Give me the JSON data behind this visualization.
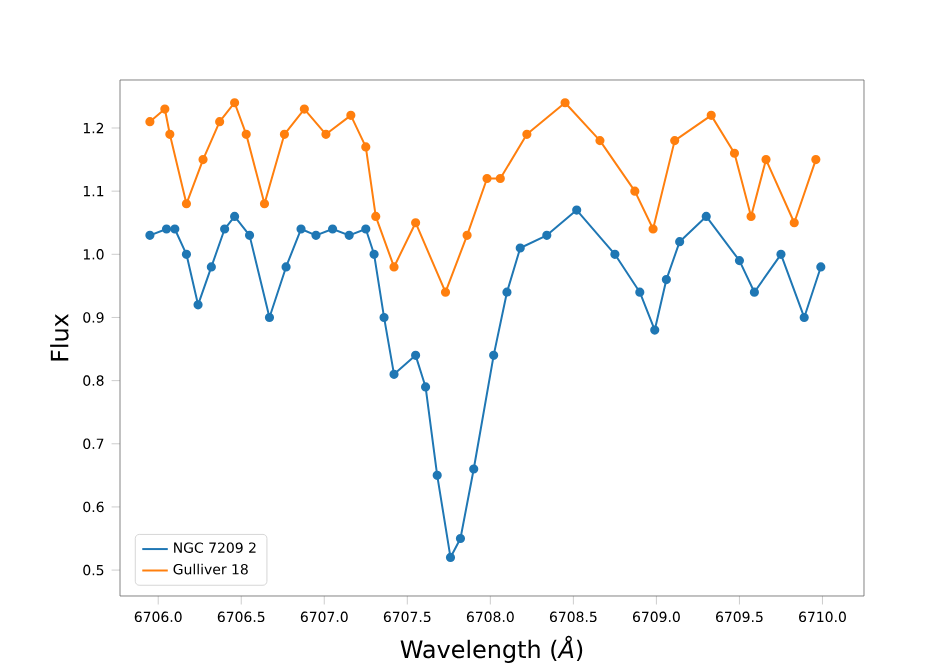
{
  "chart_data": {
    "type": "line",
    "xlabel": "Wavelength (*Å*)",
    "ylabel": "Flux",
    "marker": "circle",
    "line_style": "solid",
    "legend": "bottom left",
    "xlim": [
      6705.77,
      6710.25
    ],
    "ylim": [
      0.459,
      1.276
    ],
    "xticks": [
      {
        "value": 6706,
        "label": "6706.0"
      },
      {
        "value": 6706.5,
        "label": "6706.5"
      },
      {
        "value": 6707,
        "label": "6707.0"
      },
      {
        "value": 6707.5,
        "label": "6707.5"
      },
      {
        "value": 6708,
        "label": "6708.0"
      },
      {
        "value": 6708.5,
        "label": "6708.5"
      },
      {
        "value": 6709,
        "label": "6709.0"
      },
      {
        "value": 6709.5,
        "label": "6709.5"
      },
      {
        "value": 6710,
        "label": "6710.0"
      }
    ],
    "yticks": [
      0.5,
      0.6,
      0.7,
      0.8,
      0.9,
      {
        "value": 1,
        "label": "1.0"
      },
      1.1,
      1.2
    ],
    "series": [
      {
        "name": "NGC 7209 2",
        "color": "#1f77b4",
        "x": [
          6705.95,
          6706.05,
          6706.1,
          6706.17,
          6706.24,
          6706.32,
          6706.4,
          6706.46,
          6706.55,
          6706.67,
          6706.77,
          6706.86,
          6706.95,
          6707.05,
          6707.15,
          6707.25,
          6707.3,
          6707.36,
          6707.42,
          6707.55,
          6707.61,
          6707.68,
          6707.76,
          6707.82,
          6707.9,
          6708.02,
          6708.1,
          6708.18,
          6708.34,
          6708.52,
          6708.75,
          6708.9,
          6708.99,
          6709.06,
          6709.14,
          6709.3,
          6709.5,
          6709.59,
          6709.75,
          6709.89,
          6709.99
        ],
        "values": [
          1.03,
          1.04,
          1.04,
          1.0,
          0.92,
          0.98,
          1.04,
          1.06,
          1.03,
          0.9,
          0.98,
          1.04,
          1.03,
          1.04,
          1.03,
          1.04,
          1.0,
          0.9,
          0.81,
          0.84,
          0.79,
          0.65,
          0.52,
          0.55,
          0.66,
          0.84,
          0.94,
          1.01,
          1.03,
          1.07,
          1.0,
          0.94,
          0.88,
          0.96,
          1.02,
          1.06,
          0.99,
          0.94,
          1.0,
          0.9,
          0.98
        ]
      },
      {
        "name": "Gulliver 18",
        "color": "#ff7f0e",
        "x": [
          6705.95,
          6706.04,
          6706.07,
          6706.17,
          6706.27,
          6706.37,
          6706.46,
          6706.53,
          6706.64,
          6706.76,
          6706.88,
          6707.01,
          6707.16,
          6707.25,
          6707.31,
          6707.42,
          6707.55,
          6707.73,
          6707.86,
          6707.98,
          6708.06,
          6708.22,
          6708.45,
          6708.66,
          6708.87,
          6708.98,
          6709.11,
          6709.33,
          6709.47,
          6709.57,
          6709.66,
          6709.83,
          6709.96
        ],
        "values": [
          1.21,
          1.23,
          1.19,
          1.08,
          1.15,
          1.21,
          1.24,
          1.19,
          1.08,
          1.19,
          1.23,
          1.19,
          1.22,
          1.17,
          1.06,
          0.98,
          1.05,
          0.94,
          1.03,
          1.12,
          1.12,
          1.19,
          1.24,
          1.18,
          1.1,
          1.04,
          1.18,
          1.22,
          1.16,
          1.06,
          1.15,
          1.05,
          1.15
        ]
      }
    ]
  }
}
